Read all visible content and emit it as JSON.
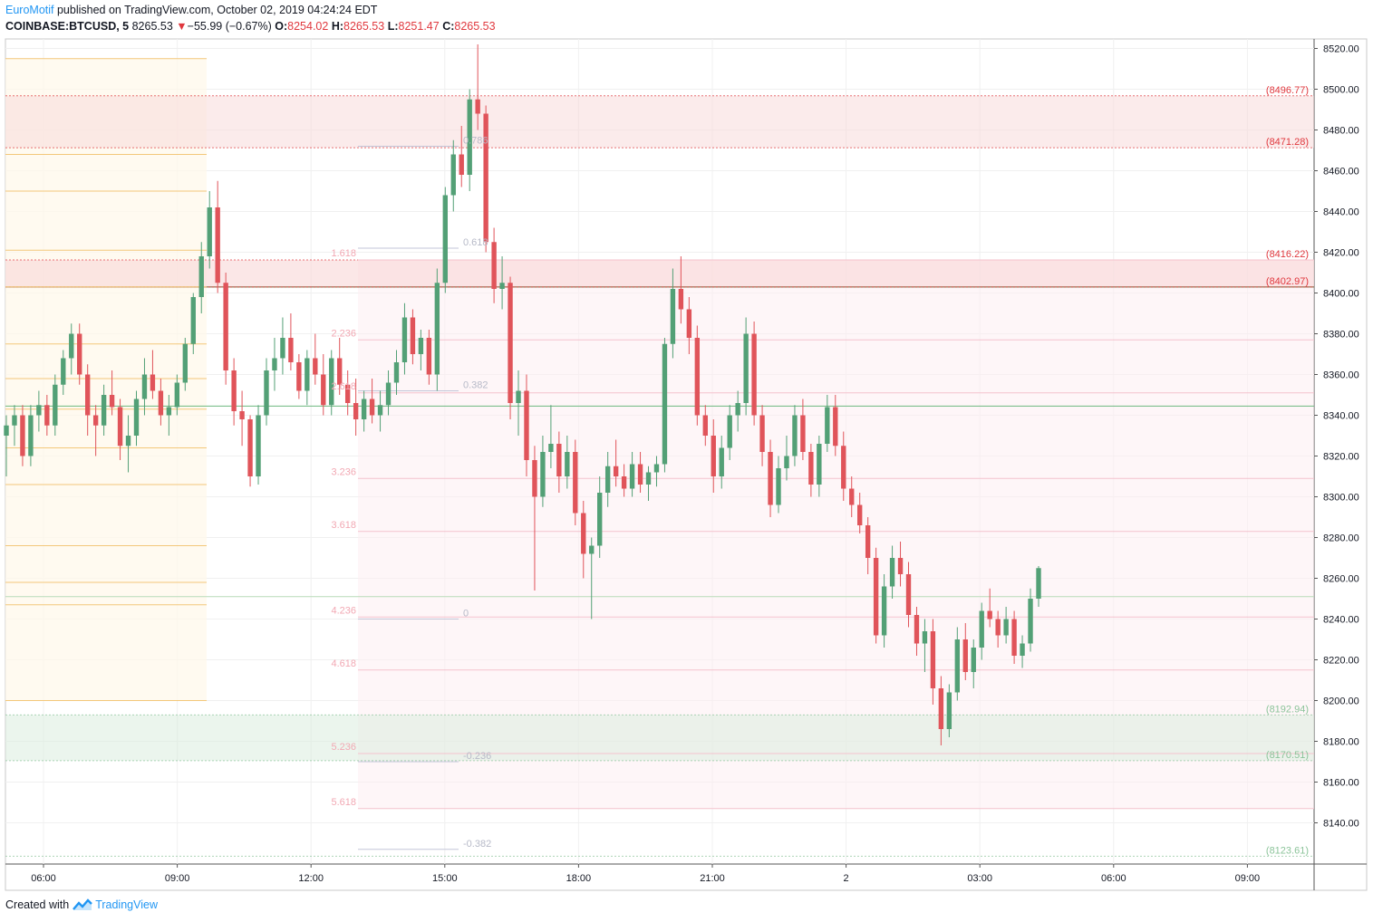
{
  "header": {
    "author": "EuroMotif",
    "published_text": " published on TradingView.com, October 02, 2019 04:24:24 EDT"
  },
  "quote": {
    "symbol": "COINBASE:BTCUSD, 5",
    "last": "8265.53",
    "change": "−55.99 (−0.67%)",
    "o_label": "O:",
    "o": "8254.02",
    "h_label": "H:",
    "h": "8265.53",
    "l_label": "L:",
    "l": "8251.47",
    "c_label": "C:",
    "c": "8265.53"
  },
  "footer": {
    "created_with": "Created with",
    "brand": "TradingView"
  },
  "colors": {
    "up": "#53a076",
    "down": "#e0545a",
    "grid": "#f0f0f0",
    "text": "#131722"
  },
  "chart_data": {
    "type": "candlestick",
    "y_axis": {
      "range": [
        8120,
        8520
      ],
      "ticks": [
        "8520.00",
        "8500.00",
        "8480.00",
        "8460.00",
        "8440.00",
        "8420.00",
        "8400.00",
        "8380.00",
        "8360.00",
        "8340.00",
        "8320.00",
        "8300.00",
        "8280.00",
        "8260.00",
        "8240.00",
        "8220.00",
        "8200.00",
        "8180.00",
        "8160.00",
        "8140.00"
      ]
    },
    "x_axis": {
      "ticks": [
        {
          "label": "06:00",
          "hours": 6
        },
        {
          "label": "09:00",
          "hours": 9
        },
        {
          "label": "12:00",
          "hours": 12
        },
        {
          "label": "15:00",
          "hours": 15
        },
        {
          "label": "18:00",
          "hours": 18
        },
        {
          "label": "21:00",
          "hours": 21
        },
        {
          "label": "2",
          "hours": 24
        },
        {
          "label": "03:00",
          "hours": 27
        },
        {
          "label": "06:00",
          "hours": 30
        },
        {
          "label": "09:00",
          "hours": 33
        }
      ]
    },
    "zones": [
      {
        "from": 8471.28,
        "to": 8496.77,
        "color": "#f8d7d7",
        "opacity": 0.5
      },
      {
        "from": 8402.97,
        "to": 8416.22,
        "color": "#f8d7d7",
        "opacity": 0.6
      },
      {
        "from": 8170.51,
        "to": 8192.94,
        "color": "#d7ecdc",
        "opacity": 0.5
      }
    ],
    "level_labels": [
      {
        "text": "(8496.77)",
        "price": 8496.77,
        "color": "#e0383e"
      },
      {
        "text": "(8471.28)",
        "price": 8471.28,
        "color": "#e0383e"
      },
      {
        "text": "(8416.22)",
        "price": 8416.22,
        "color": "#e0383e"
      },
      {
        "text": "(8402.97)",
        "price": 8402.97,
        "color": "#e0383e"
      },
      {
        "text": "(8192.94)",
        "price": 8192.94,
        "color": "#8cc49a"
      },
      {
        "text": "(8170.51)",
        "price": 8170.51,
        "color": "#8cc49a"
      },
      {
        "text": "(8123.61)",
        "price": 8123.61,
        "color": "#8cc49a"
      }
    ],
    "horizontal_lines": [
      {
        "price": 8344.5,
        "color": "#6db87f"
      },
      {
        "price": 8402.97,
        "color": "#7a5a2e"
      },
      {
        "price": 8251.0,
        "color": "#b9dcb9"
      }
    ],
    "fib_extension_levels": [
      {
        "label": "1.618",
        "price": 8416.2
      },
      {
        "label": "2.236",
        "price": 8377.0
      },
      {
        "label": "2.618",
        "price": 8351.0
      },
      {
        "label": "3.236",
        "price": 8309.0
      },
      {
        "label": "3.618",
        "price": 8283.0
      },
      {
        "label": "4.236",
        "price": 8241.0
      },
      {
        "label": "4.618",
        "price": 8215.0
      },
      {
        "label": "5.236",
        "price": 8174.0
      },
      {
        "label": "5.618",
        "price": 8147.0
      }
    ],
    "fib_retracement_levels": [
      {
        "label": "0.786",
        "price": 8472.0
      },
      {
        "label": "0.618",
        "price": 8422.0
      },
      {
        "label": "0.382",
        "price": 8352.0
      },
      {
        "label": "0",
        "price": 8240.0
      },
      {
        "label": "-0.236",
        "price": 8170.0
      },
      {
        "label": "-0.382",
        "price": 8127.0
      }
    ],
    "fib_left_levels": [
      8515,
      8468,
      8450,
      8421,
      8403,
      8375,
      8358,
      8343,
      8324,
      8306,
      8276,
      8258,
      8247,
      8200
    ],
    "candles": [
      [
        8330,
        8340,
        8310,
        8335
      ],
      [
        8335,
        8345,
        8325,
        8340
      ],
      [
        8340,
        8345,
        8315,
        8320
      ],
      [
        8320,
        8345,
        8315,
        8340
      ],
      [
        8340,
        8352,
        8332,
        8345
      ],
      [
        8345,
        8350,
        8330,
        8335
      ],
      [
        8335,
        8360,
        8330,
        8355
      ],
      [
        8355,
        8372,
        8350,
        8368
      ],
      [
        8368,
        8385,
        8360,
        8380
      ],
      [
        8380,
        8385,
        8355,
        8360
      ],
      [
        8360,
        8365,
        8330,
        8340
      ],
      [
        8340,
        8345,
        8320,
        8335
      ],
      [
        8335,
        8355,
        8330,
        8350
      ],
      [
        8350,
        8362,
        8340,
        8344
      ],
      [
        8344,
        8348,
        8318,
        8325
      ],
      [
        8325,
        8340,
        8312,
        8330
      ],
      [
        8330,
        8352,
        8325,
        8348
      ],
      [
        8348,
        8368,
        8340,
        8360
      ],
      [
        8360,
        8372,
        8348,
        8352
      ],
      [
        8352,
        8358,
        8335,
        8340
      ],
      [
        8340,
        8350,
        8330,
        8344
      ],
      [
        8344,
        8360,
        8340,
        8356
      ],
      [
        8356,
        8378,
        8352,
        8375
      ],
      [
        8375,
        8400,
        8370,
        8398
      ],
      [
        8398,
        8425,
        8390,
        8418
      ],
      [
        8418,
        8450,
        8412,
        8442
      ],
      [
        8442,
        8455,
        8400,
        8405
      ],
      [
        8405,
        8410,
        8355,
        8362
      ],
      [
        8362,
        8368,
        8335,
        8342
      ],
      [
        8342,
        8352,
        8325,
        8338
      ],
      [
        8338,
        8340,
        8305,
        8310
      ],
      [
        8310,
        8345,
        8306,
        8340
      ],
      [
        8340,
        8368,
        8335,
        8362
      ],
      [
        8362,
        8378,
        8352,
        8368
      ],
      [
        8368,
        8388,
        8360,
        8378
      ],
      [
        8378,
        8390,
        8362,
        8366
      ],
      [
        8366,
        8370,
        8348,
        8352
      ],
      [
        8352,
        8372,
        8345,
        8368
      ],
      [
        8368,
        8380,
        8355,
        8360
      ],
      [
        8360,
        8370,
        8340,
        8345
      ],
      [
        8345,
        8372,
        8340,
        8368
      ],
      [
        8368,
        8378,
        8350,
        8355
      ],
      [
        8355,
        8362,
        8340,
        8346
      ],
      [
        8346,
        8358,
        8330,
        8338
      ],
      [
        8338,
        8352,
        8332,
        8348
      ],
      [
        8348,
        8358,
        8336,
        8340
      ],
      [
        8340,
        8352,
        8332,
        8345
      ],
      [
        8345,
        8362,
        8340,
        8356
      ],
      [
        8356,
        8372,
        8350,
        8366
      ],
      [
        8366,
        8395,
        8360,
        8388
      ],
      [
        8388,
        8392,
        8365,
        8370
      ],
      [
        8370,
        8382,
        8362,
        8378
      ],
      [
        8378,
        8382,
        8355,
        8360
      ],
      [
        8360,
        8412,
        8352,
        8405
      ],
      [
        8405,
        8452,
        8400,
        8448
      ],
      [
        8448,
        8475,
        8440,
        8468
      ],
      [
        8468,
        8482,
        8452,
        8458
      ],
      [
        8458,
        8500,
        8450,
        8495
      ],
      [
        8495,
        8522,
        8480,
        8488
      ],
      [
        8488,
        8492,
        8420,
        8425
      ],
      [
        8425,
        8432,
        8395,
        8402
      ],
      [
        8402,
        8418,
        8392,
        8405
      ],
      [
        8405,
        8408,
        8338,
        8346
      ],
      [
        8346,
        8362,
        8330,
        8352
      ],
      [
        8352,
        8360,
        8310,
        8318
      ],
      [
        8318,
        8325,
        8254,
        8300
      ],
      [
        8300,
        8330,
        8295,
        8322
      ],
      [
        8322,
        8345,
        8314,
        8326
      ],
      [
        8326,
        8332,
        8302,
        8310
      ],
      [
        8310,
        8330,
        8304,
        8322
      ],
      [
        8322,
        8328,
        8286,
        8292
      ],
      [
        8292,
        8298,
        8260,
        8272
      ],
      [
        8272,
        8280,
        8240,
        8276
      ],
      [
        8276,
        8310,
        8270,
        8302
      ],
      [
        8302,
        8322,
        8295,
        8315
      ],
      [
        8315,
        8328,
        8305,
        8310
      ],
      [
        8310,
        8316,
        8300,
        8304
      ],
      [
        8304,
        8322,
        8300,
        8316
      ],
      [
        8316,
        8322,
        8302,
        8306
      ],
      [
        8306,
        8315,
        8298,
        8312
      ],
      [
        8312,
        8320,
        8305,
        8316
      ],
      [
        8316,
        8378,
        8312,
        8375
      ],
      [
        8375,
        8412,
        8368,
        8402
      ],
      [
        8402,
        8418,
        8385,
        8392
      ],
      [
        8392,
        8398,
        8370,
        8378
      ],
      [
        8378,
        8384,
        8335,
        8340
      ],
      [
        8340,
        8345,
        8325,
        8330
      ],
      [
        8330,
        8338,
        8302,
        8310
      ],
      [
        8310,
        8330,
        8304,
        8324
      ],
      [
        8324,
        8345,
        8318,
        8340
      ],
      [
        8340,
        8352,
        8332,
        8346
      ],
      [
        8346,
        8388,
        8340,
        8380
      ],
      [
        8380,
        8386,
        8335,
        8340
      ],
      [
        8340,
        8345,
        8315,
        8322
      ],
      [
        8322,
        8328,
        8290,
        8296
      ],
      [
        8296,
        8320,
        8292,
        8314
      ],
      [
        8314,
        8330,
        8308,
        8320
      ],
      [
        8320,
        8345,
        8315,
        8340
      ],
      [
        8340,
        8348,
        8318,
        8322
      ],
      [
        8322,
        8326,
        8300,
        8306
      ],
      [
        8306,
        8330,
        8300,
        8326
      ],
      [
        8326,
        8350,
        8322,
        8344
      ],
      [
        8344,
        8350,
        8320,
        8325
      ],
      [
        8325,
        8332,
        8298,
        8304
      ],
      [
        8304,
        8310,
        8290,
        8296
      ],
      [
        8296,
        8302,
        8282,
        8286
      ],
      [
        8286,
        8290,
        8262,
        8270
      ],
      [
        8270,
        8275,
        8228,
        8232
      ],
      [
        8232,
        8262,
        8226,
        8256
      ],
      [
        8256,
        8276,
        8250,
        8270
      ],
      [
        8270,
        8278,
        8256,
        8262
      ],
      [
        8262,
        8268,
        8236,
        8242
      ],
      [
        8242,
        8246,
        8222,
        8228
      ],
      [
        8228,
        8240,
        8214,
        8234
      ],
      [
        8234,
        8240,
        8198,
        8206
      ],
      [
        8206,
        8212,
        8178,
        8186
      ],
      [
        8186,
        8208,
        8182,
        8204
      ],
      [
        8204,
        8236,
        8200,
        8230
      ],
      [
        8230,
        8238,
        8210,
        8214
      ],
      [
        8214,
        8230,
        8206,
        8226
      ],
      [
        8226,
        8248,
        8220,
        8244
      ],
      [
        8244,
        8255,
        8236,
        8240
      ],
      [
        8240,
        8244,
        8226,
        8232
      ],
      [
        8232,
        8246,
        8228,
        8240
      ],
      [
        8240,
        8244,
        8218,
        8222
      ],
      [
        8222,
        8232,
        8216,
        8228
      ],
      [
        8228,
        8255,
        8224,
        8250
      ],
      [
        8250,
        8266,
        8246,
        8265
      ]
    ]
  }
}
